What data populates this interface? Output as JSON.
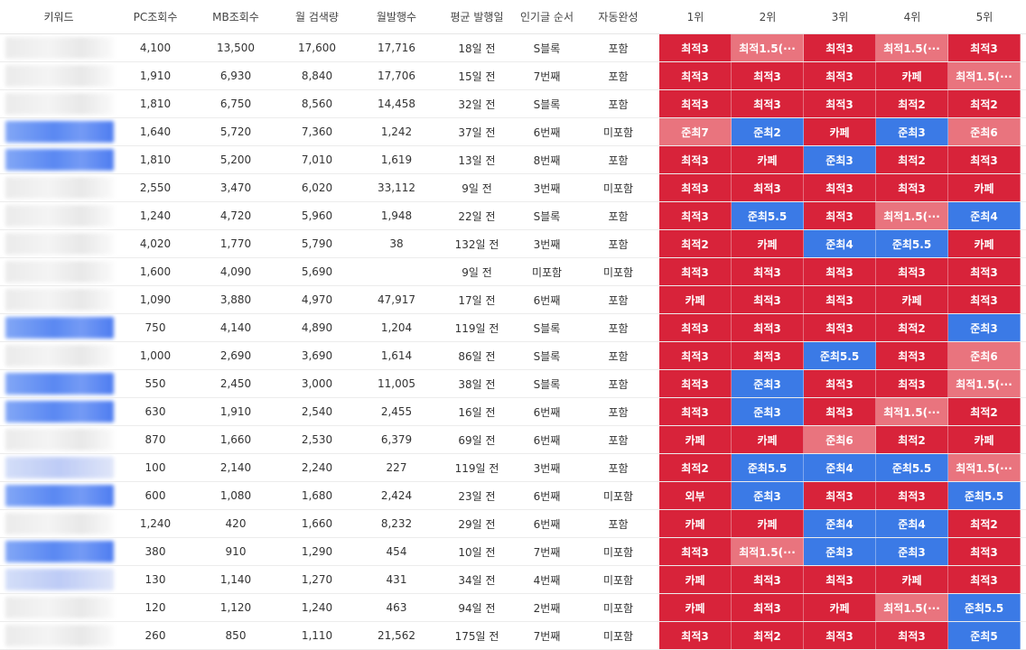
{
  "header": {
    "keyword": "키워드",
    "pc": "PC조회수",
    "mb": "MB조회수",
    "monthly_search": "월 검색량",
    "monthly_posts": "월발행수",
    "avg_days": "평균 발행일",
    "popular_order": "인기글 순서",
    "autocomplete": "자동완성",
    "rank1": "1위",
    "rank2": "2위",
    "rank3": "3위",
    "rank4": "4위",
    "rank5": "5위"
  },
  "colors": {
    "red": "#d8233a",
    "pink": "#e9747e",
    "blue": "#3b7ae6"
  },
  "rows": [
    {
      "pc": "4,100",
      "mb": "13,500",
      "search": "17,600",
      "posts": "17,716",
      "days": "18일 전",
      "order": "S블록",
      "auto": "포함",
      "ranks": [
        {
          "t": "최적3",
          "c": "red"
        },
        {
          "t": "최적1.5(···",
          "c": "pink"
        },
        {
          "t": "최적3",
          "c": "red"
        },
        {
          "t": "최적1.5(···",
          "c": "pink"
        },
        {
          "t": "최적3",
          "c": "red"
        }
      ]
    },
    {
      "pc": "1,910",
      "mb": "6,930",
      "search": "8,840",
      "posts": "17,706",
      "days": "15일 전",
      "order": "7번째",
      "auto": "포함",
      "ranks": [
        {
          "t": "최적3",
          "c": "red"
        },
        {
          "t": "최적3",
          "c": "red"
        },
        {
          "t": "최적3",
          "c": "red"
        },
        {
          "t": "카페",
          "c": "red"
        },
        {
          "t": "최적1.5(···",
          "c": "pink"
        }
      ]
    },
    {
      "pc": "1,810",
      "mb": "6,750",
      "search": "8,560",
      "posts": "14,458",
      "days": "32일 전",
      "order": "S블록",
      "auto": "포함",
      "ranks": [
        {
          "t": "최적3",
          "c": "red"
        },
        {
          "t": "최적3",
          "c": "red"
        },
        {
          "t": "최적3",
          "c": "red"
        },
        {
          "t": "최적2",
          "c": "red"
        },
        {
          "t": "최적2",
          "c": "red"
        }
      ]
    },
    {
      "pc": "1,640",
      "mb": "5,720",
      "search": "7,360",
      "posts": "1,242",
      "days": "37일 전",
      "order": "6번째",
      "auto": "미포함",
      "ranks": [
        {
          "t": "준최7",
          "c": "pink"
        },
        {
          "t": "준최2",
          "c": "blue"
        },
        {
          "t": "카페",
          "c": "red"
        },
        {
          "t": "준최3",
          "c": "blue"
        },
        {
          "t": "준최6",
          "c": "pink"
        }
      ]
    },
    {
      "pc": "1,810",
      "mb": "5,200",
      "search": "7,010",
      "posts": "1,619",
      "days": "13일 전",
      "order": "8번째",
      "auto": "포함",
      "ranks": [
        {
          "t": "최적3",
          "c": "red"
        },
        {
          "t": "카페",
          "c": "red"
        },
        {
          "t": "준최3",
          "c": "blue"
        },
        {
          "t": "최적2",
          "c": "red"
        },
        {
          "t": "최적3",
          "c": "red"
        }
      ]
    },
    {
      "pc": "2,550",
      "mb": "3,470",
      "search": "6,020",
      "posts": "33,112",
      "days": "9일 전",
      "order": "3번째",
      "auto": "미포함",
      "ranks": [
        {
          "t": "최적3",
          "c": "red"
        },
        {
          "t": "최적3",
          "c": "red"
        },
        {
          "t": "최적3",
          "c": "red"
        },
        {
          "t": "최적3",
          "c": "red"
        },
        {
          "t": "카페",
          "c": "red"
        }
      ]
    },
    {
      "pc": "1,240",
      "mb": "4,720",
      "search": "5,960",
      "posts": "1,948",
      "days": "22일 전",
      "order": "S블록",
      "auto": "포함",
      "ranks": [
        {
          "t": "최적3",
          "c": "red"
        },
        {
          "t": "준최5.5",
          "c": "blue"
        },
        {
          "t": "최적3",
          "c": "red"
        },
        {
          "t": "최적1.5(···",
          "c": "pink"
        },
        {
          "t": "준최4",
          "c": "blue"
        }
      ]
    },
    {
      "pc": "4,020",
      "mb": "1,770",
      "search": "5,790",
      "posts": "38",
      "days": "132일 전",
      "order": "3번째",
      "auto": "포함",
      "ranks": [
        {
          "t": "최적2",
          "c": "red"
        },
        {
          "t": "카페",
          "c": "red"
        },
        {
          "t": "준최4",
          "c": "blue"
        },
        {
          "t": "준최5.5",
          "c": "blue"
        },
        {
          "t": "카페",
          "c": "red"
        }
      ]
    },
    {
      "pc": "1,600",
      "mb": "4,090",
      "search": "5,690",
      "posts": "",
      "days": "9일 전",
      "order": "미포함",
      "auto": "미포함",
      "ranks": [
        {
          "t": "최적3",
          "c": "red"
        },
        {
          "t": "최적3",
          "c": "red"
        },
        {
          "t": "최적3",
          "c": "red"
        },
        {
          "t": "최적3",
          "c": "red"
        },
        {
          "t": "최적3",
          "c": "red"
        }
      ]
    },
    {
      "pc": "1,090",
      "mb": "3,880",
      "search": "4,970",
      "posts": "47,917",
      "days": "17일 전",
      "order": "6번째",
      "auto": "포함",
      "ranks": [
        {
          "t": "카페",
          "c": "red"
        },
        {
          "t": "최적3",
          "c": "red"
        },
        {
          "t": "최적3",
          "c": "red"
        },
        {
          "t": "카페",
          "c": "red"
        },
        {
          "t": "최적3",
          "c": "red"
        }
      ]
    },
    {
      "pc": "750",
      "mb": "4,140",
      "search": "4,890",
      "posts": "1,204",
      "days": "119일 전",
      "order": "S블록",
      "auto": "포함",
      "ranks": [
        {
          "t": "최적3",
          "c": "red"
        },
        {
          "t": "최적3",
          "c": "red"
        },
        {
          "t": "최적3",
          "c": "red"
        },
        {
          "t": "최적2",
          "c": "red"
        },
        {
          "t": "준최3",
          "c": "blue"
        }
      ]
    },
    {
      "pc": "1,000",
      "mb": "2,690",
      "search": "3,690",
      "posts": "1,614",
      "days": "86일 전",
      "order": "S블록",
      "auto": "포함",
      "ranks": [
        {
          "t": "최적3",
          "c": "red"
        },
        {
          "t": "최적3",
          "c": "red"
        },
        {
          "t": "준최5.5",
          "c": "blue"
        },
        {
          "t": "최적3",
          "c": "red"
        },
        {
          "t": "준최6",
          "c": "pink"
        }
      ]
    },
    {
      "pc": "550",
      "mb": "2,450",
      "search": "3,000",
      "posts": "11,005",
      "days": "38일 전",
      "order": "S블록",
      "auto": "포함",
      "ranks": [
        {
          "t": "최적3",
          "c": "red"
        },
        {
          "t": "준최3",
          "c": "blue"
        },
        {
          "t": "최적3",
          "c": "red"
        },
        {
          "t": "최적3",
          "c": "red"
        },
        {
          "t": "최적1.5(···",
          "c": "pink"
        }
      ]
    },
    {
      "pc": "630",
      "mb": "1,910",
      "search": "2,540",
      "posts": "2,455",
      "days": "16일 전",
      "order": "6번째",
      "auto": "포함",
      "ranks": [
        {
          "t": "최적3",
          "c": "red"
        },
        {
          "t": "준최3",
          "c": "blue"
        },
        {
          "t": "최적3",
          "c": "red"
        },
        {
          "t": "최적1.5(···",
          "c": "pink"
        },
        {
          "t": "최적2",
          "c": "red"
        }
      ]
    },
    {
      "pc": "870",
      "mb": "1,660",
      "search": "2,530",
      "posts": "6,379",
      "days": "69일 전",
      "order": "6번째",
      "auto": "포함",
      "ranks": [
        {
          "t": "카페",
          "c": "red"
        },
        {
          "t": "카페",
          "c": "red"
        },
        {
          "t": "준최6",
          "c": "pink"
        },
        {
          "t": "최적2",
          "c": "red"
        },
        {
          "t": "카페",
          "c": "red"
        }
      ]
    },
    {
      "pc": "100",
      "mb": "2,140",
      "search": "2,240",
      "posts": "227",
      "days": "119일 전",
      "order": "3번째",
      "auto": "포함",
      "ranks": [
        {
          "t": "최적2",
          "c": "red"
        },
        {
          "t": "준최5.5",
          "c": "blue"
        },
        {
          "t": "준최4",
          "c": "blue"
        },
        {
          "t": "준최5.5",
          "c": "blue"
        },
        {
          "t": "최적1.5(···",
          "c": "pink"
        }
      ]
    },
    {
      "pc": "600",
      "mb": "1,080",
      "search": "1,680",
      "posts": "2,424",
      "days": "23일 전",
      "order": "6번째",
      "auto": "미포함",
      "ranks": [
        {
          "t": "외부",
          "c": "red"
        },
        {
          "t": "준최3",
          "c": "blue"
        },
        {
          "t": "최적3",
          "c": "red"
        },
        {
          "t": "최적3",
          "c": "red"
        },
        {
          "t": "준최5.5",
          "c": "blue"
        }
      ]
    },
    {
      "pc": "1,240",
      "mb": "420",
      "search": "1,660",
      "posts": "8,232",
      "days": "29일 전",
      "order": "6번째",
      "auto": "포함",
      "ranks": [
        {
          "t": "카페",
          "c": "red"
        },
        {
          "t": "카페",
          "c": "red"
        },
        {
          "t": "준최4",
          "c": "blue"
        },
        {
          "t": "준최4",
          "c": "blue"
        },
        {
          "t": "최적2",
          "c": "red"
        }
      ]
    },
    {
      "pc": "380",
      "mb": "910",
      "search": "1,290",
      "posts": "454",
      "days": "10일 전",
      "order": "7번째",
      "auto": "미포함",
      "ranks": [
        {
          "t": "최적3",
          "c": "red"
        },
        {
          "t": "최적1.5(···",
          "c": "pink"
        },
        {
          "t": "준최3",
          "c": "blue"
        },
        {
          "t": "준최3",
          "c": "blue"
        },
        {
          "t": "최적3",
          "c": "red"
        }
      ]
    },
    {
      "pc": "130",
      "mb": "1,140",
      "search": "1,270",
      "posts": "431",
      "days": "34일 전",
      "order": "4번째",
      "auto": "미포함",
      "ranks": [
        {
          "t": "카페",
          "c": "red"
        },
        {
          "t": "최적3",
          "c": "red"
        },
        {
          "t": "최적3",
          "c": "red"
        },
        {
          "t": "카페",
          "c": "red"
        },
        {
          "t": "최적3",
          "c": "red"
        }
      ]
    },
    {
      "pc": "120",
      "mb": "1,120",
      "search": "1,240",
      "posts": "463",
      "days": "94일 전",
      "order": "2번째",
      "auto": "미포함",
      "ranks": [
        {
          "t": "카페",
          "c": "red"
        },
        {
          "t": "최적3",
          "c": "red"
        },
        {
          "t": "카페",
          "c": "red"
        },
        {
          "t": "최적1.5(···",
          "c": "pink"
        },
        {
          "t": "준최5.5",
          "c": "blue"
        }
      ]
    },
    {
      "pc": "260",
      "mb": "850",
      "search": "1,110",
      "posts": "21,562",
      "days": "175일 전",
      "order": "7번째",
      "auto": "미포함",
      "ranks": [
        {
          "t": "최적3",
          "c": "red"
        },
        {
          "t": "최적2",
          "c": "red"
        },
        {
          "t": "최적3",
          "c": "red"
        },
        {
          "t": "최적3",
          "c": "red"
        },
        {
          "t": "준최5",
          "c": "blue"
        }
      ]
    }
  ]
}
